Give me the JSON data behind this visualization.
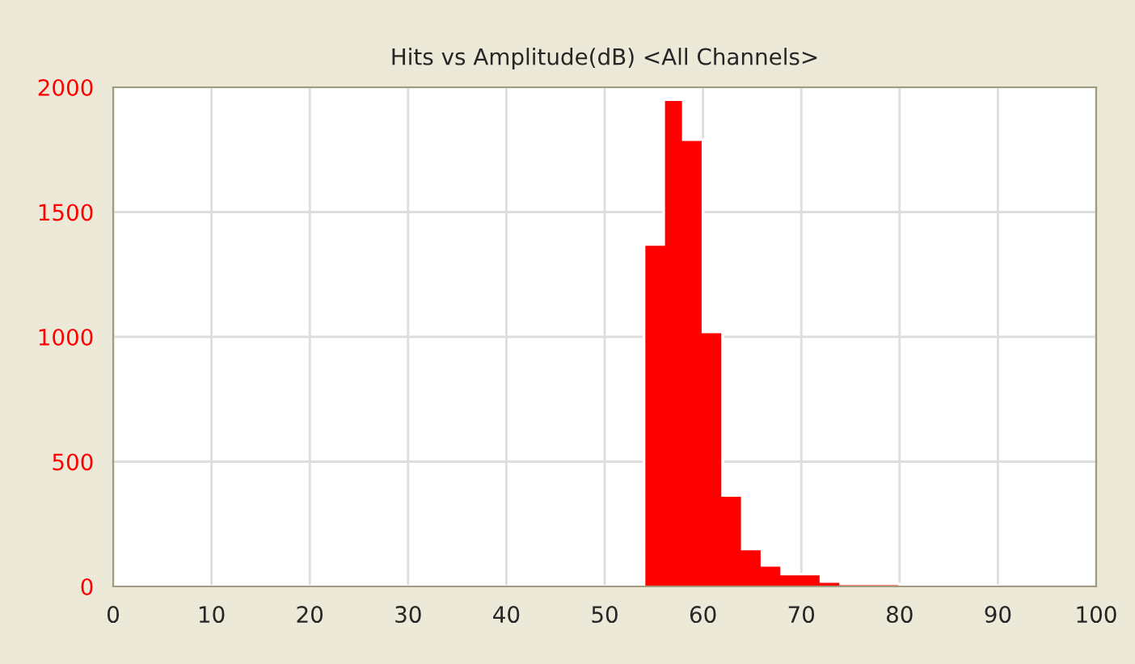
{
  "chart_data": {
    "type": "histogram",
    "title": "Hits vs Amplitude(dB) <All Channels>",
    "color": "#ff0000",
    "bins": [
      0,
      2,
      4,
      6,
      8,
      10,
      12,
      14,
      16,
      18,
      20,
      22,
      24,
      26,
      28,
      30,
      32,
      34,
      36,
      38,
      40,
      42,
      44,
      46,
      48,
      50,
      52,
      54,
      56,
      58,
      60,
      62,
      64,
      66,
      68,
      70,
      72,
      74,
      76,
      78,
      80,
      82,
      84,
      86,
      88,
      90
    ],
    "values": [
      0,
      0,
      0,
      0,
      0,
      0,
      0,
      0,
      0,
      0,
      0,
      0,
      0,
      0,
      0,
      0,
      0,
      0,
      0,
      0,
      0,
      0,
      0,
      0,
      0,
      0,
      0,
      1370,
      1950,
      1790,
      1020,
      365,
      150,
      85,
      50,
      50,
      20,
      10,
      10,
      10,
      3,
      3,
      3,
      3,
      3
    ],
    "xlim": [
      0,
      100
    ],
    "xticks": [
      0,
      10,
      20,
      30,
      40,
      50,
      60,
      70,
      80,
      90,
      100
    ],
    "ylim": [
      0,
      2000
    ],
    "yticks": [
      0,
      500,
      1000,
      1500,
      2000
    ],
    "grid": true
  }
}
